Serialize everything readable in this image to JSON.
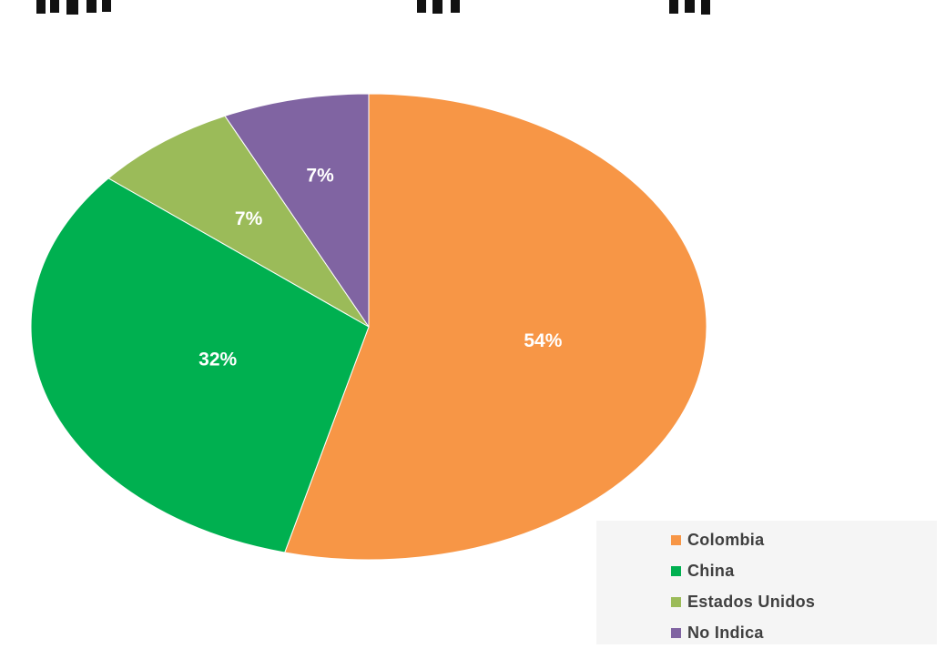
{
  "chart_data": {
    "type": "pie",
    "title": "",
    "categories": [
      "Colombia",
      "China",
      "Estados Unidos",
      "No Indica"
    ],
    "values": [
      54,
      32,
      7,
      7
    ],
    "data_labels": [
      "54%",
      "32%",
      "7%",
      "7%"
    ],
    "colors": [
      "#f79646",
      "#00b050",
      "#9bbb59",
      "#8064a2"
    ],
    "legend": {
      "position": "bottom-right",
      "entries": [
        "Colombia",
        "China",
        "Estados Unidos",
        "No Indica"
      ]
    }
  }
}
